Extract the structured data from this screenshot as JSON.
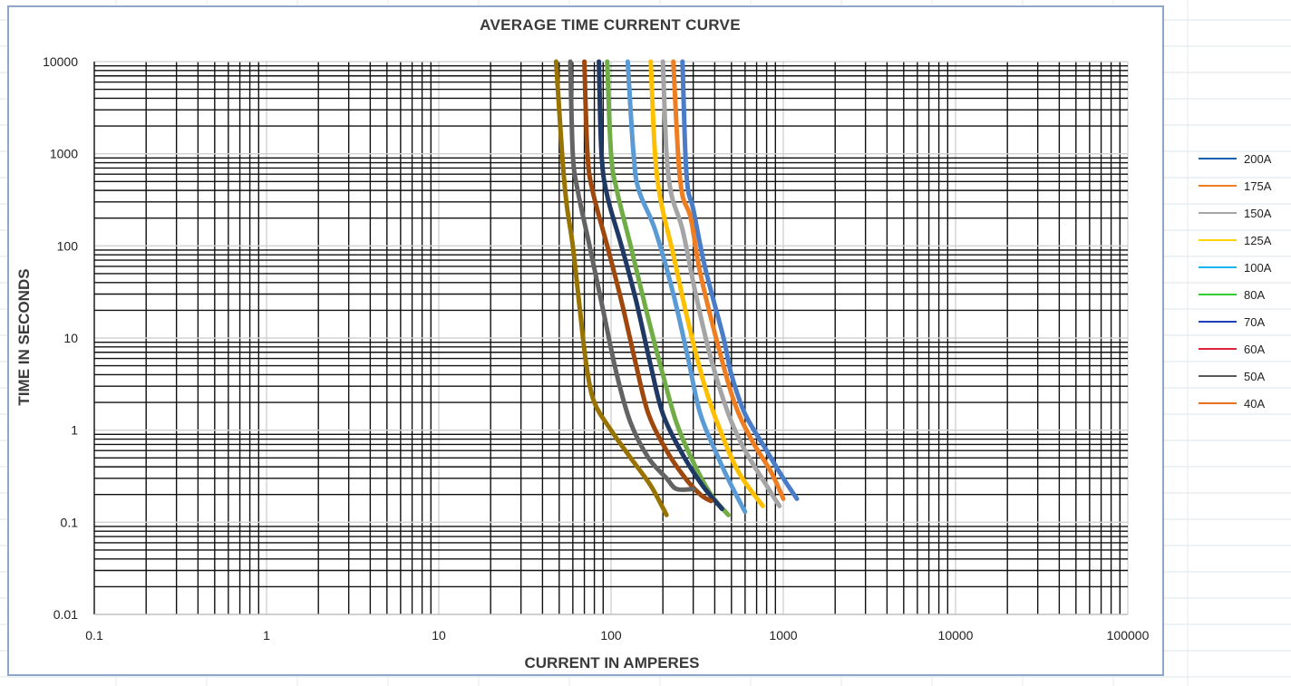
{
  "chart_data": {
    "type": "line",
    "title": "AVERAGE TIME CURRENT CURVE",
    "xlabel": "CURRENT IN AMPERES",
    "ylabel": "TIME IN SECONDS",
    "xscale": "log",
    "yscale": "log",
    "xlim": [
      0.1,
      100000
    ],
    "ylim": [
      0.01,
      10000
    ],
    "xticks": [
      "0.1",
      "1",
      "10",
      "100",
      "1000",
      "10000",
      "100000"
    ],
    "yticks": [
      "0.01",
      "0.1",
      "1",
      "10",
      "100",
      "1000",
      "10000"
    ],
    "grid": true,
    "legend_position": "right",
    "series": [
      {
        "name": "200A",
        "legend_color": "#0e5fb0",
        "color": "#4a7cc8",
        "points": [
          [
            260,
            10000
          ],
          [
            270,
            1000
          ],
          [
            280,
            400
          ],
          [
            300,
            250
          ],
          [
            350,
            60
          ],
          [
            450,
            10
          ],
          [
            500,
            4
          ],
          [
            600,
            1.5
          ],
          [
            800,
            0.6
          ],
          [
            1000,
            0.3
          ],
          [
            1200,
            0.18
          ]
        ]
      },
      {
        "name": "175A",
        "legend_color": "#ef7d22",
        "color": "#ef7d22",
        "points": [
          [
            230,
            10000
          ],
          [
            245,
            1000
          ],
          [
            260,
            350
          ],
          [
            290,
            200
          ],
          [
            330,
            50
          ],
          [
            420,
            8
          ],
          [
            520,
            2
          ],
          [
            650,
            0.8
          ],
          [
            850,
            0.35
          ],
          [
            1000,
            0.18
          ]
        ]
      },
      {
        "name": "150A",
        "legend_color": "#a5a5a5",
        "color": "#a5a5a5",
        "points": [
          [
            200,
            10000
          ],
          [
            210,
            1000
          ],
          [
            225,
            350
          ],
          [
            260,
            150
          ],
          [
            310,
            30
          ],
          [
            380,
            6
          ],
          [
            480,
            1.5
          ],
          [
            600,
            0.6
          ],
          [
            800,
            0.25
          ],
          [
            950,
            0.15
          ]
        ]
      },
      {
        "name": "125A",
        "legend_color": "#ffd400",
        "color": "#ffc000",
        "points": [
          [
            170,
            10000
          ],
          [
            180,
            1000
          ],
          [
            195,
            300
          ],
          [
            230,
            80
          ],
          [
            280,
            15
          ],
          [
            350,
            3
          ],
          [
            430,
            1
          ],
          [
            550,
            0.35
          ],
          [
            760,
            0.15
          ]
        ]
      },
      {
        "name": "100A",
        "legend_color": "#1ab4f0",
        "color": "#5b9bd5",
        "points": [
          [
            125,
            10000
          ],
          [
            135,
            1000
          ],
          [
            145,
            400
          ],
          [
            180,
            150
          ],
          [
            230,
            30
          ],
          [
            280,
            6
          ],
          [
            330,
            1.5
          ],
          [
            420,
            0.5
          ],
          [
            500,
            0.25
          ],
          [
            600,
            0.13
          ]
        ]
      },
      {
        "name": "80A",
        "legend_color": "#33cc33",
        "color": "#70ad47",
        "points": [
          [
            95,
            10000
          ],
          [
            100,
            1000
          ],
          [
            108,
            400
          ],
          [
            130,
            100
          ],
          [
            160,
            20
          ],
          [
            200,
            4
          ],
          [
            240,
            1.2
          ],
          [
            300,
            0.45
          ],
          [
            380,
            0.2
          ],
          [
            480,
            0.12
          ]
        ]
      },
      {
        "name": "70A",
        "legend_color": "#1f3fbf",
        "color": "#203864",
        "points": [
          [
            85,
            10000
          ],
          [
            88,
            1000
          ],
          [
            95,
            350
          ],
          [
            115,
            100
          ],
          [
            140,
            25
          ],
          [
            170,
            5
          ],
          [
            200,
            1.5
          ],
          [
            260,
            0.55
          ],
          [
            340,
            0.25
          ],
          [
            440,
            0.14
          ]
        ]
      },
      {
        "name": "60A",
        "legend_color": "#e0223a",
        "color": "#9e480e",
        "points": [
          [
            70,
            10000
          ],
          [
            73,
            1000
          ],
          [
            78,
            400
          ],
          [
            95,
            100
          ],
          [
            115,
            25
          ],
          [
            140,
            5
          ],
          [
            165,
            1.5
          ],
          [
            210,
            0.6
          ],
          [
            270,
            0.3
          ],
          [
            330,
            0.2
          ],
          [
            380,
            0.17
          ]
        ]
      },
      {
        "name": "50A",
        "legend_color": "#595959",
        "color": "#636363",
        "points": [
          [
            58,
            10000
          ],
          [
            60,
            1000
          ],
          [
            64,
            400
          ],
          [
            75,
            100
          ],
          [
            90,
            20
          ],
          [
            108,
            4
          ],
          [
            130,
            1.2
          ],
          [
            165,
            0.5
          ],
          [
            210,
            0.3
          ],
          [
            240,
            0.23
          ],
          [
            300,
            0.23
          ]
        ]
      },
      {
        "name": "40A",
        "legend_color": "#e87020",
        "color": "#997300",
        "points": [
          [
            48,
            10000
          ],
          [
            52,
            1000
          ],
          [
            55,
            300
          ],
          [
            60,
            100
          ],
          [
            66,
            20
          ],
          [
            72,
            5
          ],
          [
            80,
            2
          ],
          [
            100,
            1
          ],
          [
            130,
            0.5
          ],
          [
            170,
            0.25
          ],
          [
            210,
            0.12
          ]
        ]
      }
    ]
  }
}
